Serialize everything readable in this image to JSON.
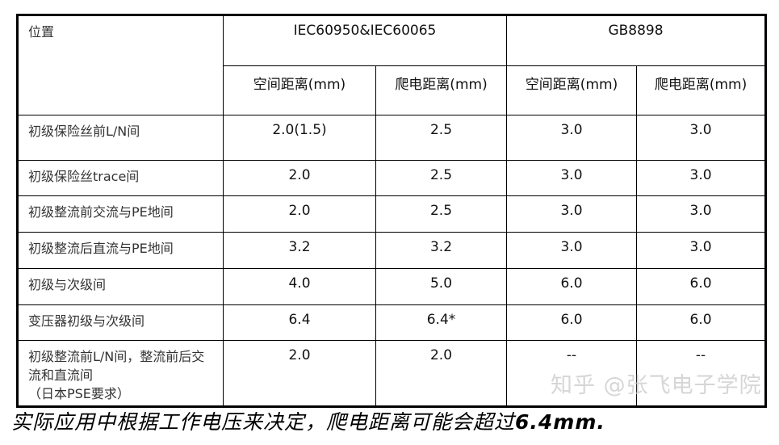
{
  "header": {
    "location": "位置",
    "std1": "IEC60950&IEC60065",
    "std2": "GB8898",
    "sub": [
      "空间距离(mm)",
      "爬电距离(mm)",
      "空间距离(mm)",
      "爬电距离(mm)"
    ]
  },
  "rows": [
    {
      "loc": "初级保险丝前L/N间",
      "v": [
        "2.0(1.5)",
        "2.5",
        "3.0",
        "3.0"
      ]
    },
    {
      "loc": "初级保险丝trace间",
      "v": [
        "2.0",
        "2.5",
        "3.0",
        "3.0"
      ]
    },
    {
      "loc": "初级整流前交流与PE地间",
      "v": [
        "2.0",
        "2.5",
        "3.0",
        "3.0"
      ]
    },
    {
      "loc": "初级整流后直流与PE地间",
      "v": [
        "3.2",
        "3.2",
        "3.0",
        "3.0"
      ]
    },
    {
      "loc": "初级与次级间",
      "v": [
        "4.0",
        "5.0",
        "6.0",
        "6.0"
      ]
    },
    {
      "loc": "变压器初级与次级间",
      "v": [
        "6.4",
        "6.4*",
        "6.0",
        "6.0"
      ]
    },
    {
      "loc": "初级整流前L/N间，整流前后交流和直流间",
      "loc2": "（日本PSE要求）",
      "v": [
        "2.0",
        "2.0",
        "--",
        "--"
      ]
    }
  ],
  "note": {
    "text": "实际应用中根据工作电压来决定，爬电距离可能会超过",
    "value": "6.4mm."
  },
  "watermark": "知乎 @张飞电子学院"
}
